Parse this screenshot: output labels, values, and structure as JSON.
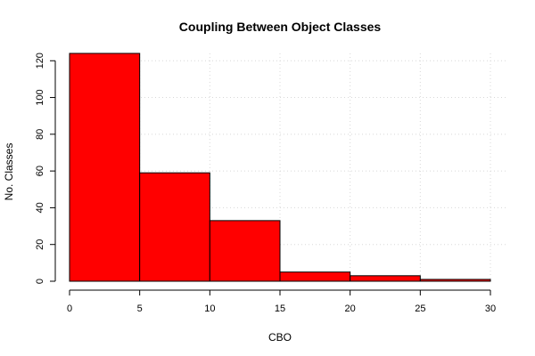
{
  "chart_data": {
    "type": "bar",
    "title": "Coupling Between Object Classes",
    "xlabel": "CBO",
    "ylabel": "No. Classes",
    "bins": [
      {
        "start": 0,
        "end": 5,
        "count": 124
      },
      {
        "start": 5,
        "end": 10,
        "count": 59
      },
      {
        "start": 10,
        "end": 15,
        "count": 33
      },
      {
        "start": 15,
        "end": 20,
        "count": 5
      },
      {
        "start": 20,
        "end": 25,
        "count": 3
      },
      {
        "start": 25,
        "end": 30,
        "count": 1
      }
    ],
    "x_ticks": [
      0,
      5,
      10,
      15,
      20,
      25,
      30
    ],
    "y_ticks": [
      0,
      20,
      40,
      60,
      80,
      100,
      120
    ],
    "xlim": [
      0,
      30
    ],
    "ylim": [
      0,
      124
    ],
    "grid": true,
    "bar_color": "#ff0000",
    "border_color": "#000000"
  }
}
